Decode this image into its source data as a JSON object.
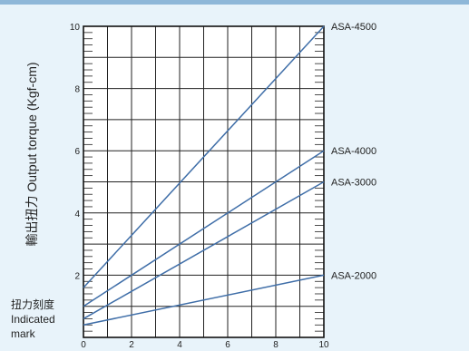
{
  "chart_data": {
    "type": "line",
    "ylabel": "輸出扭力 Output torque (Kgf-cm)",
    "xlabel_lines": [
      "扭力刻度",
      "Indicated",
      "mark"
    ],
    "xlim": [
      0,
      10
    ],
    "ylim": [
      0,
      10
    ],
    "x_ticks": [
      0,
      2,
      4,
      6,
      8,
      10
    ],
    "y_ticks": [
      2,
      4,
      6,
      8,
      10
    ],
    "grid": true,
    "series": [
      {
        "name": "ASA-4500",
        "x": [
          0,
          10
        ],
        "y": [
          1.6,
          10.0
        ]
      },
      {
        "name": "ASA-4000",
        "x": [
          0,
          10
        ],
        "y": [
          1.0,
          6.0
        ]
      },
      {
        "name": "ASA-3000",
        "x": [
          0,
          10
        ],
        "y": [
          0.6,
          5.0
        ]
      },
      {
        "name": "ASA-2000",
        "x": [
          0,
          10
        ],
        "y": [
          0.4,
          2.0
        ]
      }
    ],
    "line_color": "#3f6ea8"
  }
}
